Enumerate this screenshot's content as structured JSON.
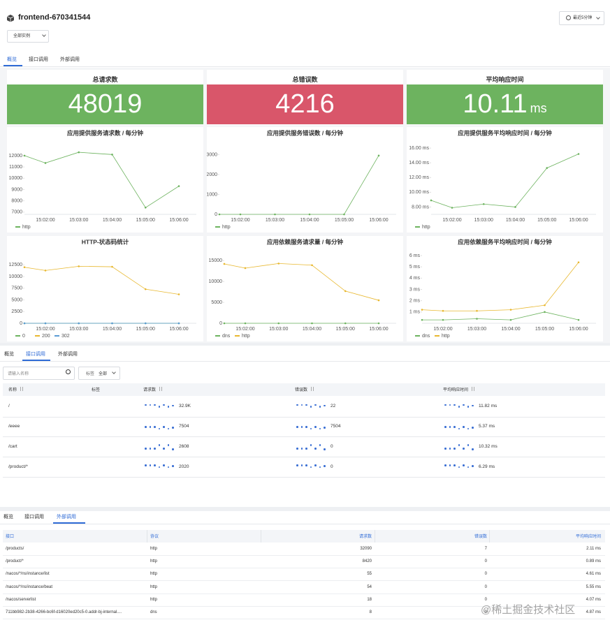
{
  "header": {
    "title": "frontend-670341544",
    "instance_select": "全部实例",
    "time_range": "最近5分钟"
  },
  "overview": {
    "tabs": [
      "概览",
      "接口调用",
      "外部调用"
    ],
    "active_tab": 0,
    "stats": [
      {
        "title": "总请求数",
        "value": 48019,
        "color": "#6db35f"
      },
      {
        "title": "总错误数",
        "value": 4216,
        "color": "#d9566a"
      },
      {
        "title": "平均响应时间",
        "value": 10.11,
        "unit": "ms",
        "color": "#6db35f"
      }
    ]
  },
  "chart_data": [
    {
      "type": "line",
      "title": "应用提供服务请求数 / 每分钟",
      "categories": [
        null,
        "15:02:00",
        "15:03:00",
        "15:04:00",
        "15:05:00",
        "15:06:00"
      ],
      "ylim": [
        6800,
        12800
      ],
      "yticks": [
        7000,
        8000,
        9000,
        10000,
        11000,
        12000
      ],
      "legend": "bottom-left",
      "series": [
        {
          "name": "http",
          "color": "#6db35f",
          "values": [
            12000,
            11350,
            12300,
            12100,
            7400,
            9300
          ]
        }
      ]
    },
    {
      "type": "line",
      "title": "应用提供服务错误数 / 每分钟",
      "categories": [
        null,
        "15:02:00",
        "15:03:00",
        "15:04:00",
        "15:05:00",
        "15:06:00"
      ],
      "ylim": [
        0,
        3400
      ],
      "yticks": [
        0,
        1000,
        2000,
        3000
      ],
      "legend": "bottom-left",
      "series": [
        {
          "name": "http",
          "color": "#6db35f",
          "values": [
            0,
            0,
            0,
            0,
            0,
            2950
          ]
        }
      ]
    },
    {
      "type": "line",
      "title": "应用提供服务平均响应时间 / 每分钟",
      "categories": [
        null,
        "15:02:00",
        "15:03:00",
        "15:04:00",
        "15:05:00",
        "15:06:00"
      ],
      "ylim": [
        7,
        16.2
      ],
      "yticks": [
        {
          "value": 8,
          "label": "8.00 ms"
        },
        {
          "value": 10,
          "label": "10.00 ms"
        },
        {
          "value": 12,
          "label": "12.00 ms"
        },
        {
          "value": 14,
          "label": "14.00 ms"
        },
        {
          "value": 16,
          "label": "16.00 ms"
        }
      ],
      "legend": "bottom-left",
      "series": [
        {
          "name": "http",
          "color": "#6db35f",
          "values": [
            8.9,
            7.9,
            8.4,
            8.0,
            13.3,
            15.2
          ]
        }
      ]
    },
    {
      "type": "line",
      "title": "HTTP-状态码统计",
      "categories": [
        null,
        "15:02:00",
        "15:03:00",
        "15:04:00",
        "15:05:00",
        "15:06:00"
      ],
      "ylim": [
        0,
        14500
      ],
      "yticks": [
        0,
        2500,
        5000,
        7500,
        10000,
        12500
      ],
      "legend": "bottom-left",
      "series": [
        {
          "name": "0",
          "color": "#6db35f",
          "values": [
            0,
            0,
            0,
            0,
            0,
            0
          ]
        },
        {
          "name": "200",
          "color": "#e8b830",
          "values": [
            12000,
            11300,
            12200,
            12100,
            7300,
            6200
          ]
        },
        {
          "name": "302",
          "color": "#5b9bd5",
          "values": [
            0,
            0,
            0,
            0,
            0,
            0
          ]
        }
      ]
    },
    {
      "type": "line",
      "title": "应用依赖服务请求量 / 每分钟",
      "categories": [
        null,
        "15:02:00",
        "15:03:00",
        "15:04:00",
        "15:05:00",
        "15:06:00"
      ],
      "ylim": [
        0,
        16200
      ],
      "yticks": [
        0,
        5000,
        10000,
        15000
      ],
      "legend": "bottom-left",
      "series": [
        {
          "name": "dns",
          "color": "#6db35f",
          "values": [
            0,
            0,
            0,
            0,
            0,
            0
          ]
        },
        {
          "name": "http",
          "color": "#e8b830",
          "values": [
            14200,
            13200,
            14300,
            13900,
            7700,
            5500
          ]
        }
      ]
    },
    {
      "type": "line",
      "title": "应用依赖服务平均响应时间 / 每分钟",
      "categories": [
        null,
        "15:02:00",
        "15:03:00",
        "15:04:00",
        "15:05:00",
        "15:06:00"
      ],
      "ylim": [
        0,
        6
      ],
      "yticks": [
        {
          "value": 1,
          "label": "1 ms"
        },
        {
          "value": 2,
          "label": "2 ms"
        },
        {
          "value": 3,
          "label": "3 ms"
        },
        {
          "value": 4,
          "label": "4 ms"
        },
        {
          "value": 5,
          "label": "5 ms"
        },
        {
          "value": 6,
          "label": "6 ms"
        }
      ],
      "legend": "bottom-left",
      "series": [
        {
          "name": "dns",
          "color": "#6db35f",
          "values": [
            0.3,
            0.3,
            0.4,
            0.3,
            1.0,
            0.3
          ]
        },
        {
          "name": "http",
          "color": "#e8b830",
          "values": [
            1.2,
            1.1,
            1.1,
            1.2,
            1.6,
            5.4
          ]
        }
      ]
    }
  ],
  "interface_panel": {
    "tabs": [
      "概览",
      "接口调用",
      "外部调用"
    ],
    "active_tab": 1,
    "search_placeholder": "请输入名称",
    "tag_filter": {
      "label": "标签",
      "value": "全部"
    },
    "columns": [
      "名称",
      "标签",
      "请求数",
      "错误数",
      "平均响应时间"
    ],
    "rows": [
      {
        "name": "/",
        "requests": "32.9K",
        "errors": "22",
        "latency": "11.82 ms"
      },
      {
        "name": "/eeee",
        "requests": "7504",
        "errors": "7504",
        "latency": "5.37 ms"
      },
      {
        "name": "/cart",
        "requests": "2608",
        "errors": "0",
        "latency": "10.32 ms"
      },
      {
        "name": "/product/*",
        "requests": "2020",
        "errors": "0",
        "latency": "6.29 ms"
      }
    ]
  },
  "external_panel": {
    "tabs": [
      "概览",
      "接口调用",
      "外部调用"
    ],
    "active_tab": 2,
    "columns": [
      "接口",
      "协议",
      "请求数",
      "错误数",
      "平均响应时间"
    ],
    "rows": [
      [
        "/products/",
        "http",
        "32090",
        "7",
        "2.11 ms"
      ],
      [
        "/product/*",
        "http",
        "8420",
        "0",
        "0.89 ms"
      ],
      [
        "/nacos/*/ns/instance/list",
        "http",
        "55",
        "0",
        "4.61 ms"
      ],
      [
        "/nacos/*/ns/instance/beat",
        "http",
        "54",
        "0",
        "5.55 ms"
      ],
      [
        "/nacos/serverlist",
        "http",
        "18",
        "0",
        "4.07 ms"
      ],
      [
        "711bb982-2b38-4266-bc6f-d16020ed20c5-0.addr-bj-internal....",
        "dns",
        "8",
        "0",
        "4.87 ms"
      ]
    ]
  },
  "watermark": "@稀土掘金技术社区"
}
